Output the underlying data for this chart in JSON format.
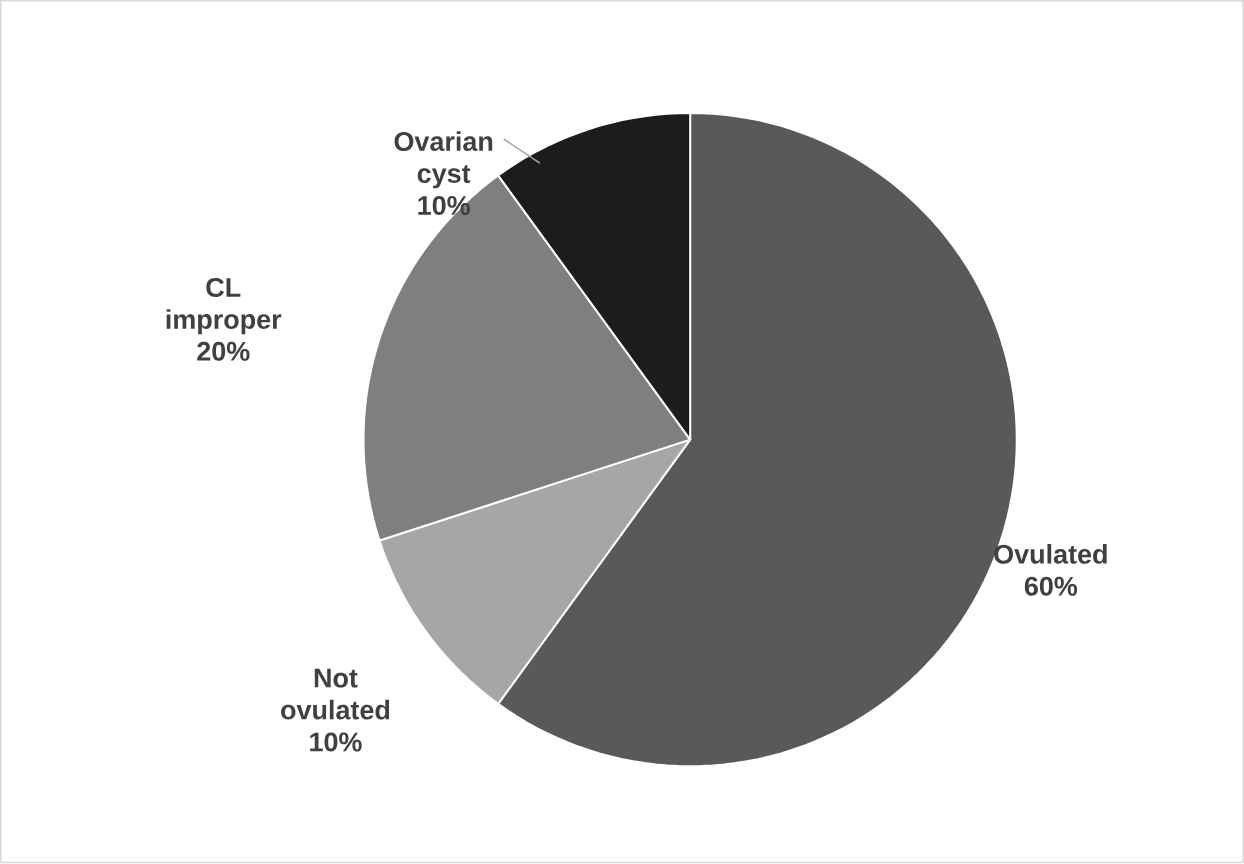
{
  "chart_data": {
    "type": "pie",
    "categories": [
      "Ovulated",
      "Not ovulated",
      "CL improper",
      "Ovarian cyst"
    ],
    "values": [
      60,
      10,
      20,
      10
    ],
    "value_labels": [
      "60%",
      "10%",
      "20%",
      "10%"
    ],
    "colors": [
      "#595959",
      "#a6a6a6",
      "#7f7f7f",
      "#1c1c1c"
    ]
  }
}
